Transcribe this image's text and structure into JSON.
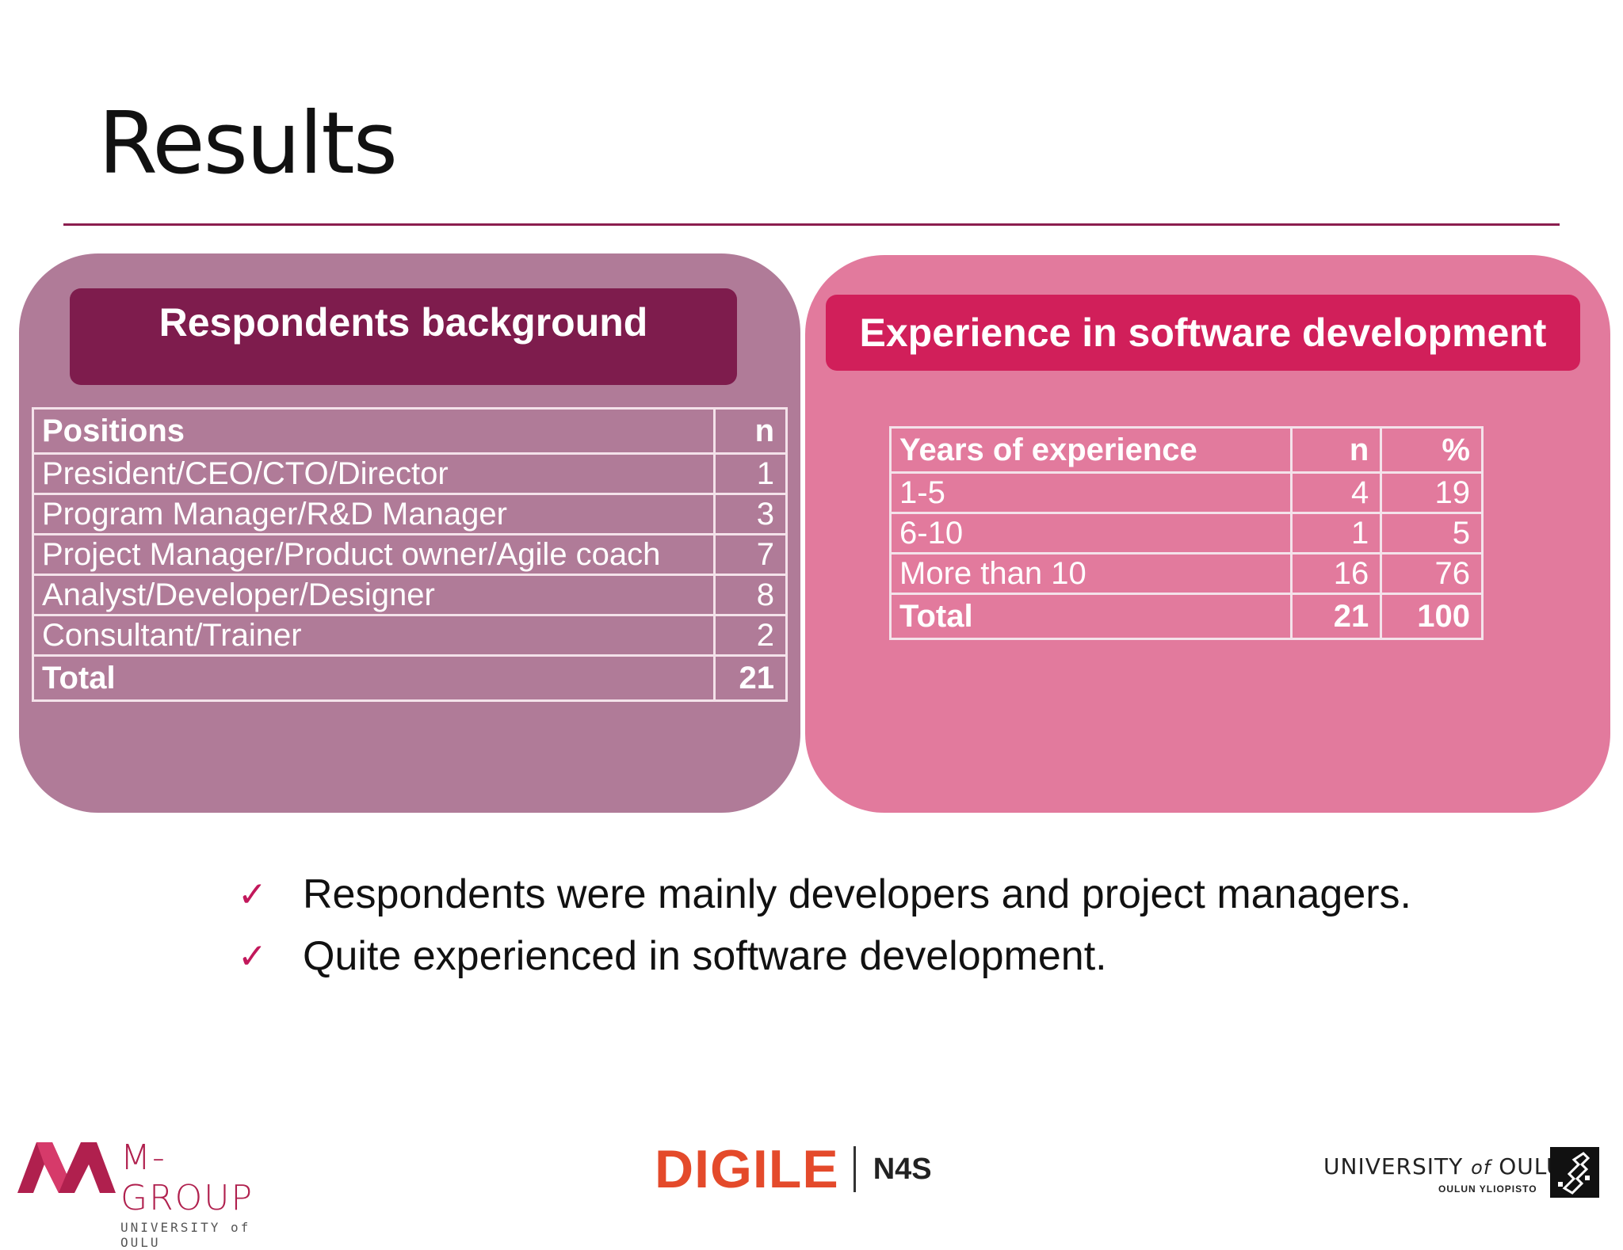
{
  "slide": {
    "title": "Results"
  },
  "left_panel": {
    "header": "Respondents background",
    "table": {
      "columns": [
        "Positions",
        "n"
      ],
      "rows": [
        [
          "President/CEO/CTO/Director",
          "1"
        ],
        [
          "Program Manager/R&D Manager",
          "3"
        ],
        [
          "Project Manager/Product owner/Agile coach",
          "7"
        ],
        [
          "Analyst/Developer/Designer",
          "8"
        ],
        [
          "Consultant/Trainer",
          "2"
        ]
      ],
      "total": [
        "Total",
        "21"
      ]
    }
  },
  "right_panel": {
    "header": "Experience in software development",
    "table": {
      "columns": [
        "Years of experience",
        "n",
        "%"
      ],
      "rows": [
        [
          "1-5",
          "4",
          "19"
        ],
        [
          "6-10",
          "1",
          "5"
        ],
        [
          "More than 10",
          "16",
          "76"
        ]
      ],
      "total": [
        "Total",
        "21",
        "100"
      ]
    }
  },
  "bullets": [
    "Respondents were mainly developers and project managers.",
    "Quite experienced in software development."
  ],
  "footer": {
    "mgroup_name": "M-GROUP",
    "mgroup_sub": "UNIVERSITY of OULU",
    "digile_word": "DIGILE",
    "digile_partner": "N4S",
    "oulu_name_a": "UNIVERSITY",
    "oulu_name_of": "of",
    "oulu_name_b": "OULU",
    "oulu_sub": "OULUN YLIOPISTO"
  },
  "colors": {
    "accent": "#8b1e4f",
    "left_panel": "#b07b98",
    "left_header": "#7e1c4d",
    "right_panel": "#e27a9d",
    "right_header": "#d11f5a",
    "check": "#c2185b"
  },
  "icons": {
    "bullet": "check-icon",
    "mgroup_logo": "m-group-logo-icon",
    "oulu_logo": "university-emblem-icon"
  }
}
